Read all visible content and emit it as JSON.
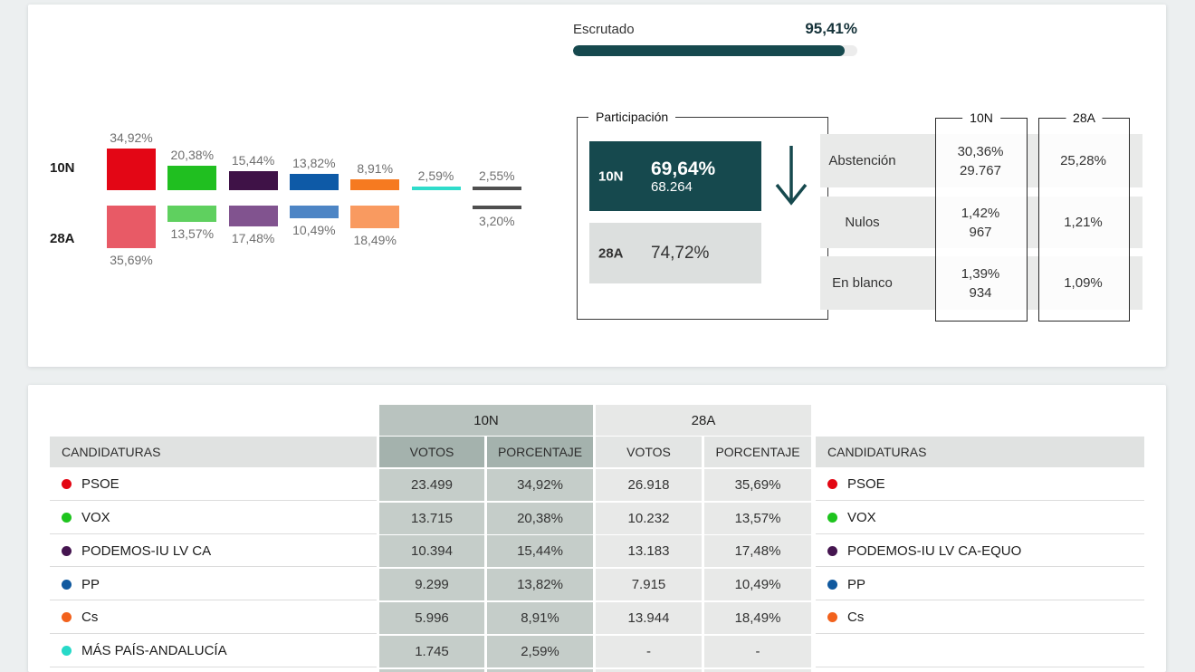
{
  "escrutado": {
    "label": "Escrutado",
    "value": "95,41%",
    "percent": 95.41
  },
  "participacion": {
    "legend": "Participación",
    "n10": {
      "label": "10N",
      "percent": "69,64%",
      "votes": "68.264"
    },
    "a28": {
      "label": "28A",
      "percent": "74,72%"
    },
    "trend_icon": "arrow-down",
    "accent_color": "#16494e"
  },
  "stats": {
    "col_headers": [
      "10N",
      "28A"
    ],
    "rows": [
      {
        "label": "Abstención",
        "n10_pct": "30,36%",
        "n10_count": "29.767",
        "a28_pct": "25,28%"
      },
      {
        "label": "Nulos",
        "n10_pct": "1,42%",
        "n10_count": "967",
        "a28_pct": "1,21%"
      },
      {
        "label": "En blanco",
        "n10_pct": "1,39%",
        "n10_count": "934",
        "a28_pct": "1,09%"
      }
    ]
  },
  "chart_data": {
    "type": "bar",
    "title": "",
    "row_labels": [
      "10N",
      "28A"
    ],
    "unit": "percent of vote",
    "series": [
      {
        "id": "psoe",
        "name": "PSOE",
        "color_10n": "#e30615",
        "color_28a": "#e85a66",
        "n10": 34.92,
        "a28": 35.69,
        "n10_label": "34,92%",
        "a28_label": "35,69%"
      },
      {
        "id": "vox",
        "name": "VOX",
        "color_10n": "#20bf20",
        "color_28a": "#5fd05f",
        "n10": 20.38,
        "a28": 13.57,
        "n10_label": "20,38%",
        "a28_label": "13,57%"
      },
      {
        "id": "podemos",
        "name": "PODEMOS-IU LV CA",
        "color_10n": "#3f1247",
        "color_28a": "#81538f",
        "n10": 15.44,
        "a28": 17.48,
        "n10_label": "15,44%",
        "a28_label": "17,48%"
      },
      {
        "id": "pp",
        "name": "PP",
        "color_10n": "#0e5aa7",
        "color_28a": "#4d85c5",
        "n10": 13.82,
        "a28": 10.49,
        "n10_label": "13,82%",
        "a28_label": "10,49%"
      },
      {
        "id": "cs",
        "name": "Cs",
        "color_10n": "#f67a20",
        "color_28a": "#f99a60",
        "n10": 8.91,
        "a28": 18.49,
        "n10_label": "8,91%",
        "a28_label": "18,49%"
      },
      {
        "id": "mas-pais",
        "name": "MÁS PAÍS-ANDALUCÍA",
        "color_10n": "#2fdccb",
        "color_28a": null,
        "n10": 2.59,
        "a28": null,
        "n10_label": "2,59%",
        "a28_label": null
      },
      {
        "id": "otros",
        "name": "",
        "color_10n": "#4f4f4f",
        "color_28a": "#4f4f4f",
        "n10": 2.55,
        "a28": 3.2,
        "n10_label": "2,55%",
        "a28_label": "3,20%"
      }
    ]
  },
  "results_table": {
    "candidaturas_header": "CANDIDATURAS",
    "group_headers": [
      "10N",
      "28A"
    ],
    "votos_header": "VOTOS",
    "porcentaje_header": "PORCENTAJE",
    "rows": [
      {
        "id": "psoe",
        "party": "PSOE",
        "party_28a": "PSOE",
        "color": "#e30613",
        "n10_votes": "23.499",
        "n10_pct": "34,92%",
        "a28_votes": "26.918",
        "a28_pct": "35,69%"
      },
      {
        "id": "vox",
        "party": "VOX",
        "party_28a": "VOX",
        "color": "#1ec41e",
        "n10_votes": "13.715",
        "n10_pct": "20,38%",
        "a28_votes": "10.232",
        "a28_pct": "13,57%"
      },
      {
        "id": "podemos",
        "party": "PODEMOS-IU LV CA",
        "party_28a": "PODEMOS-IU LV CA-EQUO",
        "color": "#451550",
        "n10_votes": "10.394",
        "n10_pct": "15,44%",
        "a28_votes": "13.183",
        "a28_pct": "17,48%"
      },
      {
        "id": "pp",
        "party": "PP",
        "party_28a": "PP",
        "color": "#10599f",
        "n10_votes": "9.299",
        "n10_pct": "13,82%",
        "a28_votes": "7.915",
        "a28_pct": "10,49%"
      },
      {
        "id": "cs",
        "party": "Cs",
        "party_28a": "Cs",
        "color": "#f2621d",
        "n10_votes": "5.996",
        "n10_pct": "8,91%",
        "a28_votes": "13.944",
        "a28_pct": "18,49%"
      },
      {
        "id": "mas-pais",
        "party": "MÁS PAÍS-ANDALUCÍA",
        "party_28a": "",
        "color": "#27d9c8",
        "n10_votes": "1.745",
        "n10_pct": "2,59%",
        "a28_votes": "-",
        "a28_pct": "-"
      }
    ],
    "colors": {
      "band_10n": "#b9c3bf",
      "hdr_10n": "#a4b2ad",
      "cell_10n": "#c5cdc9",
      "band_28a": "#e7e8e7",
      "hdr_28a": "#e3e5e4",
      "cell_28a": "#e8e9e8"
    }
  }
}
